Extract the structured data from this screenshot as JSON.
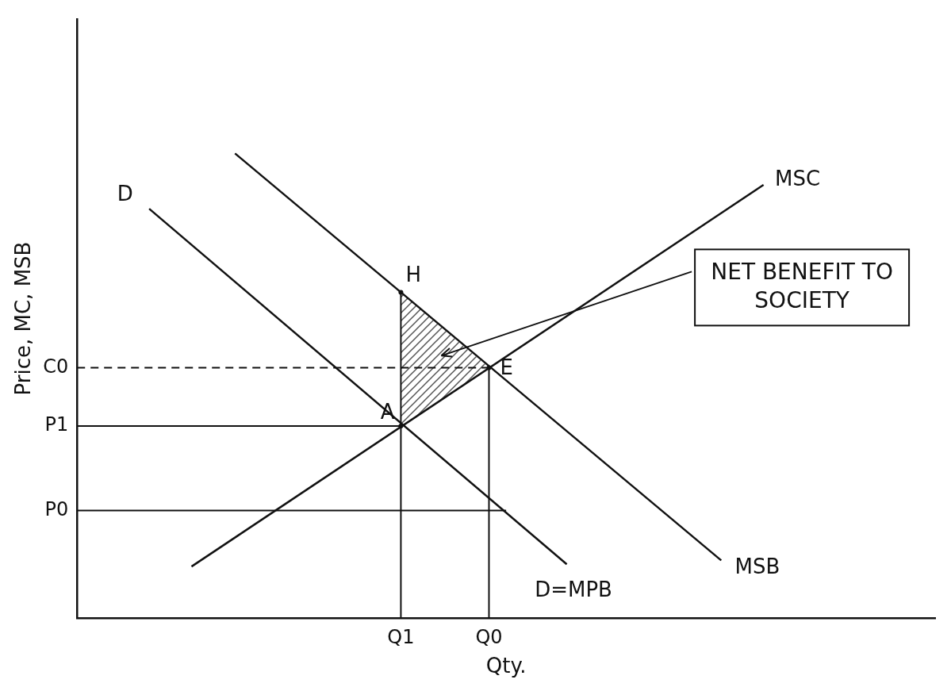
{
  "chart_data": {
    "type": "line",
    "y_label": "Price, MC, MSB",
    "x_label": "Qty.",
    "xlim": [
      0,
      75
    ],
    "ylim": [
      0,
      78
    ],
    "xticks": [
      {
        "value": 28.3,
        "label": "Q1"
      },
      {
        "value": 36,
        "label": "Q0"
      }
    ],
    "yticks": [
      {
        "value": 14,
        "label": "P0"
      },
      {
        "value": 25,
        "label": "P1"
      },
      {
        "value": 32.6,
        "label": "C0"
      }
    ],
    "grid": false,
    "series": [
      {
        "x": [
          10,
          60
        ],
        "values": [
          6.7,
          56.4
        ]
      },
      {
        "x": [
          13.8,
          56.3
        ],
        "values": [
          60.5,
          7.5
        ]
      },
      {
        "x": [
          6.3,
          42.8
        ],
        "values": [
          53.3,
          7
        ]
      }
    ],
    "guides": [
      {
        "x": [
          28.3,
          28.3
        ],
        "values": [
          0,
          42.4
        ]
      },
      {
        "x": [
          36,
          36
        ],
        "values": [
          0,
          32.6
        ]
      },
      {
        "x": [
          0,
          36
        ],
        "values": [
          32.6,
          32.6
        ],
        "line_style": "dashed"
      },
      {
        "x": [
          0,
          28.3
        ],
        "values": [
          25,
          25
        ]
      },
      {
        "x": [
          0,
          37.5
        ],
        "values": [
          14,
          14
        ]
      }
    ],
    "points": [
      {
        "label": "H",
        "x": 28.3,
        "y": 42.4,
        "position": "above"
      },
      {
        "label": "E",
        "x": 36,
        "y": 32.6,
        "position": "right"
      },
      {
        "label": "A",
        "x": 28.3,
        "y": 25,
        "position": "left"
      }
    ],
    "shaded": {
      "text": "NET BENEFIT TO SOCIETY",
      "points": [
        "H",
        "E",
        "A"
      ]
    },
    "annotations": [
      {
        "text": "MSC",
        "x": 61,
        "y": 57
      },
      {
        "text": "MSB",
        "x": 57.5,
        "y": 6.5
      },
      {
        "text": "D",
        "x": 3.5,
        "y": 55
      },
      {
        "text": "D=MPB",
        "x": 40,
        "y": 3.5
      }
    ]
  }
}
